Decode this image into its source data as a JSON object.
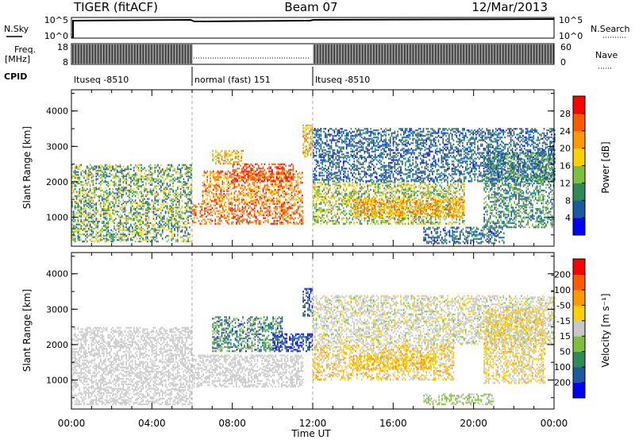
{
  "header": {
    "title": "TIGER (fitACF)",
    "beam": "Beam 07",
    "date": "12/Mar/2013"
  },
  "noise_panel": {
    "left_label": "N.Sky",
    "right_label": "N.Search",
    "ticks": [
      "10^5",
      "10^0"
    ]
  },
  "freq_panel": {
    "left_label_1": "Freq.",
    "left_label_2": "[MHz]",
    "right_label": "Nave",
    "left_ticks": [
      "18",
      "8"
    ],
    "right_ticks": [
      "60",
      "0"
    ]
  },
  "cpid_panel": {
    "label": "CPID",
    "segments": [
      {
        "label": "ltuseq -8510",
        "start": 0,
        "end": 6
      },
      {
        "label": "normal (fast) 151",
        "start": 6,
        "end": 12
      },
      {
        "label": "ltuseq -8510",
        "start": 12,
        "end": 24
      }
    ]
  },
  "x_axis": {
    "label": "Time UT",
    "ticks": [
      "00:00",
      "04:00",
      "08:00",
      "12:00",
      "16:00",
      "20:00",
      "00:00"
    ]
  },
  "chart_data": [
    {
      "type": "heatmap",
      "name": "power",
      "ylabel": "Slant Range [km]",
      "yticks": [
        "1000",
        "2000",
        "3000",
        "4000"
      ],
      "ylim": [
        180,
        4600
      ],
      "xlim": [
        0,
        24
      ],
      "colorbar": {
        "label": "Power [dB]",
        "ticks": [
          "4",
          "8",
          "12",
          "16",
          "20",
          "24",
          "28"
        ],
        "colors": [
          "#0000ff",
          "#1a5aa0",
          "#2e8b57",
          "#7fbf3f",
          "#ffd000",
          "#ff9900",
          "#ff5a00",
          "#ff0000"
        ],
        "range": [
          0,
          32
        ]
      },
      "regions": [
        {
          "t0": 0.0,
          "t1": 6.0,
          "r0": 300,
          "r1": 2500,
          "v0": 4,
          "v1": 20
        },
        {
          "t0": 6.0,
          "t1": 11.5,
          "r0": 800,
          "r1": 1400,
          "v0": 20,
          "v1": 31
        },
        {
          "t0": 6.5,
          "t1": 11.5,
          "r0": 1400,
          "r1": 2300,
          "v0": 16,
          "v1": 30
        },
        {
          "t0": 8.0,
          "t1": 11.0,
          "r0": 2000,
          "r1": 2500,
          "v0": 24,
          "v1": 31
        },
        {
          "t0": 7.0,
          "t1": 8.5,
          "r0": 2500,
          "r1": 2900,
          "v0": 14,
          "v1": 26
        },
        {
          "t0": 11.5,
          "t1": 12.0,
          "r0": 2700,
          "r1": 3600,
          "v0": 14,
          "v1": 26
        },
        {
          "t0": 12.0,
          "t1": 19.5,
          "r0": 800,
          "r1": 2000,
          "v0": 8,
          "v1": 22
        },
        {
          "t0": 14.0,
          "t1": 19.5,
          "r0": 1000,
          "r1": 1500,
          "v0": 16,
          "v1": 26
        },
        {
          "t0": 12.0,
          "t1": 24.0,
          "r0": 2000,
          "r1": 3500,
          "v0": 3,
          "v1": 10
        },
        {
          "t0": 17.5,
          "t1": 21.5,
          "r0": 250,
          "r1": 700,
          "v0": 3,
          "v1": 12
        },
        {
          "t0": 20.5,
          "t1": 24.0,
          "r0": 700,
          "r1": 2800,
          "v0": 4,
          "v1": 16
        }
      ]
    },
    {
      "type": "heatmap",
      "name": "velocity",
      "ylabel": "Slant Range [km]",
      "yticks": [
        "1000",
        "2000",
        "3000",
        "4000"
      ],
      "ylim": [
        180,
        4600
      ],
      "xlim": [
        0,
        24
      ],
      "colorbar": {
        "label": "Velocity [m s⁻¹]",
        "ticks": [
          "200",
          "100",
          "50",
          "15",
          "-15",
          "-50",
          "-100",
          "-200"
        ],
        "colors": [
          "#0000ff",
          "#1a5aa0",
          "#2e8b57",
          "#7fbf3f",
          "#c8c8c8",
          "#ffd000",
          "#ff9900",
          "#ff5a00",
          "#ff0000"
        ],
        "range": [
          -250,
          250
        ]
      },
      "regions": [
        {
          "t0": 0.0,
          "t1": 6.0,
          "r0": 300,
          "r1": 2500,
          "v0": -15,
          "v1": 15
        },
        {
          "t0": 6.0,
          "t1": 11.5,
          "r0": 800,
          "r1": 1700,
          "v0": -15,
          "v1": 15
        },
        {
          "t0": 7.0,
          "t1": 10.5,
          "r0": 1800,
          "r1": 2800,
          "v0": 15,
          "v1": 200
        },
        {
          "t0": 10.0,
          "t1": 12.0,
          "r0": 1800,
          "r1": 2300,
          "v0": 150,
          "v1": 240
        },
        {
          "t0": 11.5,
          "t1": 12.0,
          "r0": 2800,
          "r1": 3600,
          "v0": 120,
          "v1": 240
        },
        {
          "t0": 12.0,
          "t1": 19.0,
          "r0": 1000,
          "r1": 2000,
          "v0": -120,
          "v1": 30
        },
        {
          "t0": 14.0,
          "t1": 18.0,
          "r0": 1300,
          "r1": 1700,
          "v0": -120,
          "v1": -40
        },
        {
          "t0": 12.0,
          "t1": 24.0,
          "r0": 2000,
          "r1": 3400,
          "v0": -40,
          "v1": 40
        },
        {
          "t0": 17.5,
          "t1": 21.0,
          "r0": 300,
          "r1": 600,
          "v0": 15,
          "v1": 60
        },
        {
          "t0": 20.5,
          "t1": 23.5,
          "r0": 900,
          "r1": 3000,
          "v0": -100,
          "v1": 20
        }
      ]
    }
  ]
}
